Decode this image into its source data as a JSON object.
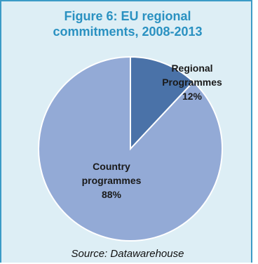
{
  "title_lines": [
    "Figure 6: EU regional",
    "commitments, 2008-2013"
  ],
  "source": "Source: Datawarehouse",
  "chart_data": {
    "type": "pie",
    "slices": [
      {
        "label_lines": [
          "Regional",
          "Programmes"
        ],
        "value": 12,
        "value_label": "12%",
        "color": "#4a72a8"
      },
      {
        "label_lines": [
          "Country",
          "programmes"
        ],
        "value": 88,
        "value_label": "88%",
        "color": "#93aad6"
      }
    ],
    "start": "12 o'clock",
    "direction": "clockwise",
    "legend": "none"
  }
}
